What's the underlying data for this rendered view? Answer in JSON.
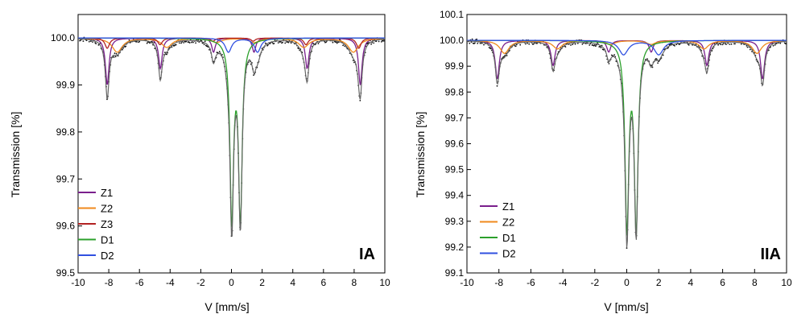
{
  "chart_data": [
    {
      "type": "line",
      "panel_label": "IA",
      "xlabel": "V [mm/s]",
      "ylabel": "Transmission [%]",
      "xlim": [
        -10,
        10
      ],
      "ylim": [
        99.5,
        100.05
      ],
      "x_ticks": [
        "-10",
        "-8",
        "-6",
        "-4",
        "-2",
        "0",
        "2",
        "4",
        "6",
        "8",
        "10"
      ],
      "y_ticks": [
        "99.5",
        "99.6",
        "99.7",
        "99.8",
        "99.9",
        "100.0"
      ],
      "legend": "bottom-left",
      "series": [
        {
          "name": "Z1",
          "color": "#7a1f8c",
          "kind": "sextet",
          "center": 0.15,
          "split": 16.5,
          "depth": 0.1,
          "width": 0.28
        },
        {
          "name": "Z2",
          "color": "#f08a1c",
          "kind": "sextet",
          "center": 0.25,
          "split": 15.4,
          "depth": 0.03,
          "width": 0.8
        },
        {
          "name": "Z3",
          "color": "#b22222",
          "kind": "sextet",
          "center": 0.1,
          "split": 16.4,
          "depth": 0.022,
          "width": 0.35
        },
        {
          "name": "D1",
          "color": "#2ca02c",
          "kind": "doublet",
          "center": 0.3,
          "split": 0.56,
          "depth": 0.385,
          "width": 0.28
        },
        {
          "name": "D2",
          "color": "#3050e0",
          "kind": "doublet",
          "center": 0.75,
          "split": 1.9,
          "depth": 0.03,
          "width": 0.5
        }
      ]
    },
    {
      "type": "line",
      "panel_label": "IIA",
      "xlabel": "V [mm/s]",
      "ylabel": "Transmission [%]",
      "xlim": [
        -10,
        10
      ],
      "ylim": [
        99.1,
        100.1
      ],
      "x_ticks": [
        "-10",
        "-8",
        "-6",
        "-4",
        "-2",
        "0",
        "2",
        "4",
        "6",
        "8",
        "10"
      ],
      "y_ticks": [
        "99.1",
        "99.2",
        "99.3",
        "99.4",
        "99.5",
        "99.6",
        "99.7",
        "99.8",
        "99.9",
        "100.0",
        "100.1"
      ],
      "legend": "bottom-left",
      "series": [
        {
          "name": "Z1",
          "color": "#7a1f8c",
          "kind": "sextet",
          "center": 0.2,
          "split": 16.6,
          "depth": 0.15,
          "width": 0.3
        },
        {
          "name": "Z2",
          "color": "#f08a1c",
          "kind": "sextet",
          "center": 0.25,
          "split": 15.8,
          "depth": 0.05,
          "width": 0.7
        },
        {
          "name": "D1",
          "color": "#2ca02c",
          "kind": "doublet",
          "center": 0.3,
          "split": 0.58,
          "depth": 0.72,
          "width": 0.28
        },
        {
          "name": "D2",
          "color": "#3050e0",
          "kind": "doublet",
          "center": 0.9,
          "split": 2.2,
          "depth": 0.055,
          "width": 0.7
        }
      ]
    }
  ]
}
